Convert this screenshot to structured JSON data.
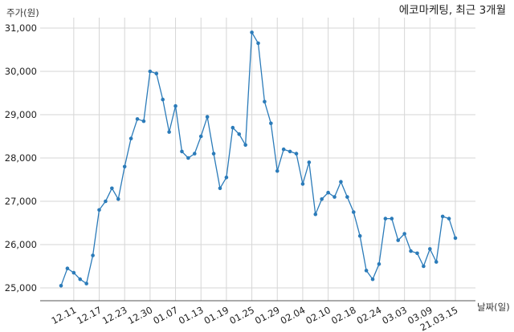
{
  "chart_data": {
    "type": "line",
    "title": "에코마케팅, 최근 3개월",
    "ylabel": "주가(원)",
    "xlabel": "날짜(일)",
    "ylim": [
      24700,
      31100
    ],
    "yticks": [
      25000,
      26000,
      27000,
      28000,
      29000,
      30000,
      31000
    ],
    "ytick_labels": [
      "25,000",
      "26,000",
      "27,000",
      "28,000",
      "29,000",
      "30,000",
      "31,000"
    ],
    "xtick_labels": [
      {
        "index": 2,
        "label": "12.11"
      },
      {
        "index": 6,
        "label": "12.17"
      },
      {
        "index": 10,
        "label": "12.23"
      },
      {
        "index": 14,
        "label": "12.30"
      },
      {
        "index": 18,
        "label": "01.07"
      },
      {
        "index": 22,
        "label": "01.13"
      },
      {
        "index": 26,
        "label": "01.19"
      },
      {
        "index": 30,
        "label": "01.25"
      },
      {
        "index": 34,
        "label": "01.29"
      },
      {
        "index": 38,
        "label": "02.04"
      },
      {
        "index": 42,
        "label": "02.10"
      },
      {
        "index": 46,
        "label": "02.18"
      },
      {
        "index": 50,
        "label": "02.24"
      },
      {
        "index": 54,
        "label": "03.03"
      },
      {
        "index": 58,
        "label": "03.09"
      },
      {
        "index": 62,
        "label": "21.03.15"
      }
    ],
    "values": [
      25050,
      25450,
      25350,
      25200,
      25100,
      25750,
      26800,
      27000,
      27300,
      27050,
      27800,
      28450,
      28900,
      28850,
      30000,
      29950,
      29350,
      28600,
      29200,
      28150,
      28000,
      28100,
      28500,
      28950,
      28100,
      27300,
      27550,
      28700,
      28550,
      28300,
      30900,
      30650,
      29300,
      28800,
      27700,
      28200,
      28150,
      28100,
      27400,
      27900,
      26700,
      27050,
      27200,
      27100,
      27450,
      27100,
      26750,
      26200,
      25400,
      25200,
      25550,
      26600,
      26600,
      26100,
      26250,
      25850,
      25800,
      25500,
      25900,
      25600,
      26650,
      26600,
      26150
    ],
    "color": "#2b7bb9",
    "grid": true
  }
}
